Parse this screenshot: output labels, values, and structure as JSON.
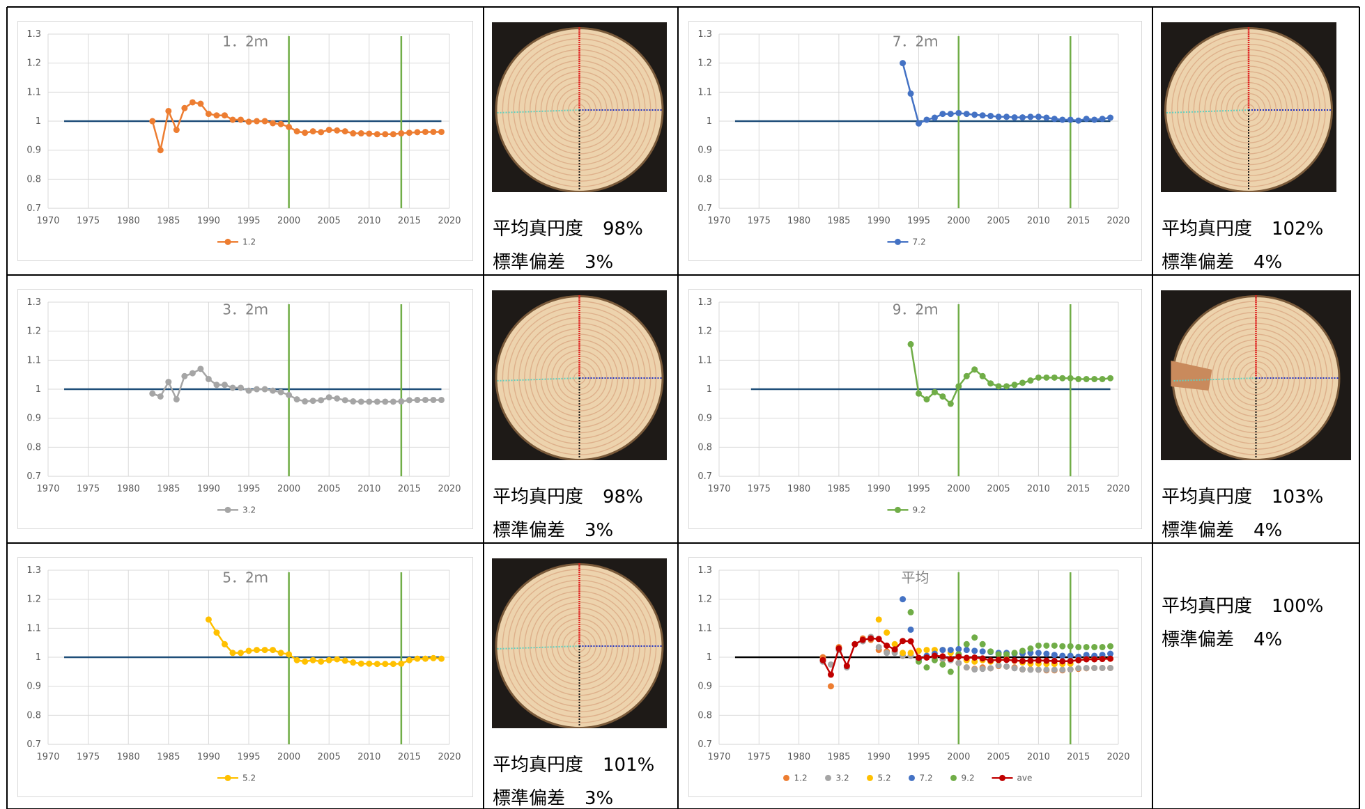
{
  "chart_data": [
    {
      "type": "line",
      "title": "1．2ｍ",
      "xlim": [
        1970,
        2020
      ],
      "xticks": [
        1970,
        1975,
        1980,
        1985,
        1990,
        1995,
        2000,
        2005,
        2010,
        2015,
        2020
      ],
      "ylim": [
        0.7,
        1.3
      ],
      "yticks": [
        0.7,
        0.8,
        0.9,
        1,
        1.1,
        1.2,
        1.3
      ],
      "grid": true,
      "vlines": [
        2000,
        2014
      ],
      "vline_color": "#70ad47",
      "reference_line": {
        "value": 1,
        "x": [
          1972,
          2019
        ],
        "color": "#1f4e79"
      },
      "series": [
        {
          "name": "1.2",
          "color": "#ed7d31",
          "x": [
            1983,
            1984,
            1985,
            1986,
            1987,
            1988,
            1989,
            1990,
            1991,
            1992,
            1993,
            1994,
            1995,
            1996,
            1997,
            1998,
            1999,
            2000,
            2001,
            2002,
            2003,
            2004,
            2005,
            2006,
            2007,
            2008,
            2009,
            2010,
            2011,
            2012,
            2013,
            2014,
            2015,
            2016,
            2017,
            2018,
            2019
          ],
          "values": [
            1.0,
            0.9,
            1.035,
            0.97,
            1.045,
            1.065,
            1.06,
            1.025,
            1.02,
            1.02,
            1.005,
            1.005,
            0.998,
            1.0,
            1.0,
            0.993,
            0.99,
            0.98,
            0.965,
            0.96,
            0.965,
            0.962,
            0.97,
            0.968,
            0.965,
            0.958,
            0.958,
            0.957,
            0.955,
            0.955,
            0.955,
            0.958,
            0.96,
            0.962,
            0.963,
            0.963,
            0.963
          ]
        }
      ]
    },
    {
      "type": "line",
      "title": "7．2ｍ",
      "xlim": [
        1970,
        2020
      ],
      "xticks": [
        1970,
        1975,
        1980,
        1985,
        1990,
        1995,
        2000,
        2005,
        2010,
        2015,
        2020
      ],
      "ylim": [
        0.7,
        1.3
      ],
      "yticks": [
        0.7,
        0.8,
        0.9,
        1,
        1.1,
        1.2,
        1.3
      ],
      "grid": true,
      "vlines": [
        2000,
        2014
      ],
      "vline_color": "#70ad47",
      "reference_line": {
        "value": 1,
        "x": [
          1972,
          2019
        ],
        "color": "#1f4e79"
      },
      "series": [
        {
          "name": "7.2",
          "color": "#4472c4",
          "x": [
            1993,
            1994,
            1995,
            1996,
            1997,
            1998,
            1999,
            2000,
            2001,
            2002,
            2003,
            2004,
            2005,
            2006,
            2007,
            2008,
            2009,
            2010,
            2011,
            2012,
            2013,
            2014,
            2015,
            2016,
            2017,
            2018,
            2019
          ],
          "values": [
            1.2,
            1.095,
            0.992,
            1.005,
            1.012,
            1.025,
            1.025,
            1.028,
            1.025,
            1.022,
            1.02,
            1.018,
            1.015,
            1.015,
            1.013,
            1.013,
            1.015,
            1.015,
            1.012,
            1.008,
            1.005,
            1.005,
            1.002,
            1.008,
            1.005,
            1.008,
            1.012
          ]
        }
      ]
    },
    {
      "type": "line",
      "title": "3．2ｍ",
      "xlim": [
        1970,
        2020
      ],
      "xticks": [
        1970,
        1975,
        1980,
        1985,
        1990,
        1995,
        2000,
        2005,
        2010,
        2015,
        2020
      ],
      "ylim": [
        0.7,
        1.3
      ],
      "yticks": [
        0.7,
        0.8,
        0.9,
        1,
        1.1,
        1.2,
        1.3
      ],
      "grid": true,
      "vlines": [
        2000,
        2014
      ],
      "vline_color": "#70ad47",
      "reference_line": {
        "value": 1,
        "x": [
          1972,
          2019
        ],
        "color": "#1f4e79"
      },
      "series": [
        {
          "name": "3.2",
          "color": "#a5a5a5",
          "x": [
            1983,
            1984,
            1985,
            1986,
            1987,
            1988,
            1989,
            1990,
            1991,
            1992,
            1993,
            1994,
            1995,
            1996,
            1997,
            1998,
            1999,
            2000,
            2001,
            2002,
            2003,
            2004,
            2005,
            2006,
            2007,
            2008,
            2009,
            2010,
            2011,
            2012,
            2013,
            2014,
            2015,
            2016,
            2017,
            2018,
            2019
          ],
          "values": [
            0.985,
            0.975,
            1.025,
            0.965,
            1.045,
            1.055,
            1.07,
            1.035,
            1.015,
            1.015,
            1.005,
            1.005,
            0.995,
            1.0,
            1.0,
            0.995,
            0.99,
            0.98,
            0.965,
            0.958,
            0.96,
            0.962,
            0.972,
            0.968,
            0.962,
            0.958,
            0.957,
            0.957,
            0.957,
            0.957,
            0.957,
            0.958,
            0.962,
            0.963,
            0.963,
            0.963,
            0.963
          ]
        }
      ]
    },
    {
      "type": "line",
      "title": "9．2ｍ",
      "xlim": [
        1970,
        2020
      ],
      "xticks": [
        1970,
        1975,
        1980,
        1985,
        1990,
        1995,
        2000,
        2005,
        2010,
        2015,
        2020
      ],
      "ylim": [
        0.7,
        1.3
      ],
      "yticks": [
        0.7,
        0.8,
        0.9,
        1,
        1.1,
        1.2,
        1.3
      ],
      "grid": true,
      "vlines": [
        2000,
        2014
      ],
      "vline_color": "#70ad47",
      "reference_line": {
        "value": 1,
        "x": [
          1974,
          2019
        ],
        "color": "#1f4e79"
      },
      "series": [
        {
          "name": "9.2",
          "color": "#70ad47",
          "x": [
            1994,
            1995,
            1996,
            1997,
            1998,
            1999,
            2000,
            2001,
            2002,
            2003,
            2004,
            2005,
            2006,
            2007,
            2008,
            2009,
            2010,
            2011,
            2012,
            2013,
            2014,
            2015,
            2016,
            2017,
            2018,
            2019
          ],
          "values": [
            1.155,
            0.985,
            0.965,
            0.99,
            0.975,
            0.95,
            1.01,
            1.045,
            1.068,
            1.045,
            1.02,
            1.01,
            1.01,
            1.015,
            1.022,
            1.03,
            1.04,
            1.04,
            1.04,
            1.038,
            1.038,
            1.035,
            1.035,
            1.035,
            1.035,
            1.038
          ]
        }
      ]
    },
    {
      "type": "line",
      "title": "5．2ｍ",
      "xlim": [
        1970,
        2020
      ],
      "xticks": [
        1970,
        1975,
        1980,
        1985,
        1990,
        1995,
        2000,
        2005,
        2010,
        2015,
        2020
      ],
      "ylim": [
        0.7,
        1.3
      ],
      "yticks": [
        0.7,
        0.8,
        0.9,
        1,
        1.1,
        1.2,
        1.3
      ],
      "grid": true,
      "vlines": [
        2000,
        2014
      ],
      "vline_color": "#70ad47",
      "reference_line": {
        "value": 1,
        "x": [
          1972,
          2019
        ],
        "color": "#1f4e79"
      },
      "series": [
        {
          "name": "5.2",
          "color": "#ffc000",
          "x": [
            1990,
            1991,
            1992,
            1993,
            1994,
            1995,
            1996,
            1997,
            1998,
            1999,
            2000,
            2001,
            2002,
            2003,
            2004,
            2005,
            2006,
            2007,
            2008,
            2009,
            2010,
            2011,
            2012,
            2013,
            2014,
            2015,
            2016,
            2017,
            2018,
            2019
          ],
          "values": [
            1.13,
            1.085,
            1.045,
            1.015,
            1.015,
            1.022,
            1.025,
            1.025,
            1.025,
            1.015,
            1.01,
            0.99,
            0.985,
            0.99,
            0.985,
            0.99,
            0.993,
            0.988,
            0.982,
            0.978,
            0.978,
            0.977,
            0.977,
            0.977,
            0.978,
            0.99,
            0.995,
            0.995,
            0.997,
            0.995
          ]
        }
      ]
    },
    {
      "type": "line",
      "title": "平均",
      "xlim": [
        1970,
        2020
      ],
      "xticks": [
        1970,
        1975,
        1980,
        1985,
        1990,
        1995,
        2000,
        2005,
        2010,
        2015,
        2020
      ],
      "ylim": [
        0.7,
        1.3
      ],
      "yticks": [
        0.7,
        0.8,
        0.9,
        1,
        1.1,
        1.2,
        1.3
      ],
      "grid": true,
      "vlines": [
        2000,
        2014
      ],
      "vline_color": "#70ad47",
      "reference_line": {
        "value": 1,
        "x": [
          1972,
          2019
        ],
        "color": "#000000"
      },
      "series": [
        {
          "name": "1.2",
          "color": "#ed7d31",
          "line": false,
          "x": [
            1983,
            1984,
            1985,
            1986,
            1987,
            1988,
            1989,
            1990,
            1991,
            1992,
            1993,
            1994,
            1995,
            1996,
            1997,
            1998,
            1999,
            2000,
            2001,
            2002,
            2003,
            2004,
            2005,
            2006,
            2007,
            2008,
            2009,
            2010,
            2011,
            2012,
            2013,
            2014,
            2015,
            2016,
            2017,
            2018,
            2019
          ],
          "values": [
            1.0,
            0.9,
            1.035,
            0.97,
            1.045,
            1.065,
            1.06,
            1.025,
            1.02,
            1.02,
            1.005,
            1.005,
            0.998,
            1.0,
            1.0,
            0.993,
            0.99,
            0.98,
            0.965,
            0.96,
            0.965,
            0.962,
            0.97,
            0.968,
            0.965,
            0.958,
            0.958,
            0.957,
            0.955,
            0.955,
            0.955,
            0.958,
            0.96,
            0.962,
            0.963,
            0.963,
            0.963
          ]
        },
        {
          "name": "3.2",
          "color": "#a5a5a5",
          "line": false,
          "x": [
            1983,
            1984,
            1985,
            1986,
            1987,
            1988,
            1989,
            1990,
            1991,
            1992,
            1993,
            1994,
            1995,
            1996,
            1997,
            1998,
            1999,
            2000,
            2001,
            2002,
            2003,
            2004,
            2005,
            2006,
            2007,
            2008,
            2009,
            2010,
            2011,
            2012,
            2013,
            2014,
            2015,
            2016,
            2017,
            2018,
            2019
          ],
          "values": [
            0.985,
            0.975,
            1.025,
            0.965,
            1.045,
            1.055,
            1.07,
            1.035,
            1.015,
            1.015,
            1.005,
            1.005,
            0.995,
            1.0,
            1.0,
            0.995,
            0.99,
            0.98,
            0.965,
            0.958,
            0.96,
            0.962,
            0.972,
            0.968,
            0.962,
            0.958,
            0.957,
            0.957,
            0.957,
            0.957,
            0.957,
            0.958,
            0.962,
            0.963,
            0.963,
            0.963,
            0.963
          ]
        },
        {
          "name": "5.2",
          "color": "#ffc000",
          "line": false,
          "x": [
            1990,
            1991,
            1992,
            1993,
            1994,
            1995,
            1996,
            1997,
            1998,
            1999,
            2000,
            2001,
            2002,
            2003,
            2004,
            2005,
            2006,
            2007,
            2008,
            2009,
            2010,
            2011,
            2012,
            2013,
            2014,
            2015,
            2016,
            2017,
            2018,
            2019
          ],
          "values": [
            1.13,
            1.085,
            1.045,
            1.015,
            1.015,
            1.022,
            1.025,
            1.025,
            1.025,
            1.015,
            1.01,
            0.99,
            0.985,
            0.99,
            0.985,
            0.99,
            0.993,
            0.988,
            0.982,
            0.978,
            0.978,
            0.977,
            0.977,
            0.977,
            0.978,
            0.99,
            0.995,
            0.995,
            0.997,
            0.995
          ]
        },
        {
          "name": "7.2",
          "color": "#4472c4",
          "line": false,
          "x": [
            1993,
            1994,
            1995,
            1996,
            1997,
            1998,
            1999,
            2000,
            2001,
            2002,
            2003,
            2004,
            2005,
            2006,
            2007,
            2008,
            2009,
            2010,
            2011,
            2012,
            2013,
            2014,
            2015,
            2016,
            2017,
            2018,
            2019
          ],
          "values": [
            1.2,
            1.095,
            0.992,
            1.005,
            1.012,
            1.025,
            1.025,
            1.028,
            1.025,
            1.022,
            1.02,
            1.018,
            1.015,
            1.015,
            1.013,
            1.013,
            1.015,
            1.015,
            1.012,
            1.008,
            1.005,
            1.005,
            1.002,
            1.008,
            1.005,
            1.008,
            1.012
          ]
        },
        {
          "name": "9.2",
          "color": "#70ad47",
          "line": false,
          "x": [
            1994,
            1995,
            1996,
            1997,
            1998,
            1999,
            2000,
            2001,
            2002,
            2003,
            2004,
            2005,
            2006,
            2007,
            2008,
            2009,
            2010,
            2011,
            2012,
            2013,
            2014,
            2015,
            2016,
            2017,
            2018,
            2019
          ],
          "values": [
            1.155,
            0.985,
            0.965,
            0.99,
            0.975,
            0.95,
            1.01,
            1.045,
            1.068,
            1.045,
            1.02,
            1.01,
            1.01,
            1.015,
            1.022,
            1.03,
            1.04,
            1.04,
            1.04,
            1.038,
            1.038,
            1.035,
            1.035,
            1.035,
            1.035,
            1.038
          ]
        },
        {
          "name": "ave",
          "color": "#c00000",
          "x": [
            1983,
            1984,
            1985,
            1986,
            1987,
            1988,
            1989,
            1990,
            1991,
            1992,
            1993,
            1994,
            1995,
            1996,
            1997,
            1998,
            1999,
            2000,
            2001,
            2002,
            2003,
            2004,
            2005,
            2006,
            2007,
            2008,
            2009,
            2010,
            2011,
            2012,
            2013,
            2014,
            2015,
            2016,
            2017,
            2018,
            2019
          ],
          "values": [
            0.99,
            0.94,
            1.03,
            0.97,
            1.045,
            1.06,
            1.065,
            1.063,
            1.04,
            1.027,
            1.056,
            1.055,
            0.998,
            0.999,
            1.005,
            1.003,
            0.994,
            1.002,
            0.998,
            0.999,
            0.996,
            0.989,
            0.991,
            0.991,
            0.989,
            0.987,
            0.988,
            0.989,
            0.988,
            0.987,
            0.986,
            0.987,
            0.99,
            0.993,
            0.993,
            0.994,
            0.995
          ]
        }
      ]
    }
  ],
  "stats": [
    {
      "roundness_label": "平均真円度",
      "roundness": "98%",
      "sd_label": "標準偏差",
      "sd": "3%"
    },
    {
      "roundness_label": "平均真円度",
      "roundness": "102%",
      "sd_label": "標準偏差",
      "sd": "4%"
    },
    {
      "roundness_label": "平均真円度",
      "roundness": "98%",
      "sd_label": "標準偏差",
      "sd": "3%"
    },
    {
      "roundness_label": "平均真円度",
      "roundness": "103%",
      "sd_label": "標準偏差",
      "sd": "4%"
    },
    {
      "roundness_label": "平均真円度",
      "roundness": "101%",
      "sd_label": "標準偏差",
      "sd": "3%"
    },
    {
      "roundness_label": "平均真円度",
      "roundness": "100%",
      "sd_label": "標準偏差",
      "sd": "4%"
    }
  ]
}
